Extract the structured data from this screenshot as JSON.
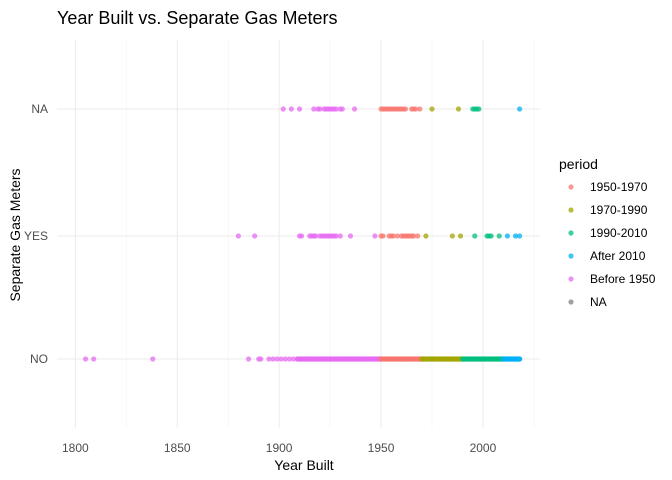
{
  "chart_data": {
    "type": "scatter",
    "title": "Year Built vs. Separate Gas Meters",
    "xlabel": "Year Built",
    "ylabel": "Separate Gas Meters",
    "xlim": [
      1791,
      2028
    ],
    "x_ticks": [
      "1800",
      "1850",
      "1900",
      "1950",
      "2000"
    ],
    "categories": [
      "NO",
      "YES",
      "NA"
    ],
    "grid": true,
    "legend_position": "right",
    "legend_title": "period",
    "series": [
      {
        "name": "1950-1970",
        "color": "#F8766D",
        "points": [
          {
            "y": "NA",
            "x": [
              1950,
              1951,
              1952,
              1953,
              1954,
              1955,
              1956,
              1957,
              1958,
              1959,
              1960,
              1961,
              1962,
              1965,
              1966,
              1967,
              1969
            ]
          },
          {
            "y": "YES",
            "x": [
              1950,
              1951,
              1954,
              1955,
              1956,
              1958,
              1960,
              1961,
              1962,
              1963,
              1964,
              1965,
              1966,
              1968
            ]
          },
          {
            "y": "NO",
            "x": [
              1950,
              1952,
              1954,
              1956,
              1958,
              1960,
              1962,
              1964,
              1966,
              1968,
              1970
            ]
          }
        ]
      },
      {
        "name": "1970-1990",
        "color": "#A3A500",
        "points": [
          {
            "y": "NA",
            "x": [
              1975,
              1988
            ]
          },
          {
            "y": "YES",
            "x": [
              1972,
              1985,
              1989
            ]
          },
          {
            "y": "NO",
            "x": [
              1971,
              1973,
              1975,
              1977,
              1979,
              1981,
              1983,
              1985,
              1987,
              1989
            ]
          }
        ]
      },
      {
        "name": "1990-2010",
        "color": "#00BF7D",
        "points": [
          {
            "y": "NA",
            "x": [
              1995,
              1996,
              1997,
              1998
            ]
          },
          {
            "y": "YES",
            "x": [
              1996,
              2002,
              2003,
              2004,
              2008
            ]
          },
          {
            "y": "NO",
            "x": [
              1991,
              1993,
              1995,
              1997,
              1999,
              2001,
              2003,
              2005,
              2007,
              2009
            ]
          }
        ]
      },
      {
        "name": "After 2010",
        "color": "#00B0F6",
        "points": [
          {
            "y": "NA",
            "x": [
              2018
            ]
          },
          {
            "y": "YES",
            "x": [
              2012,
              2016,
              2018
            ]
          },
          {
            "y": "NO",
            "x": [
              2010,
              2011,
              2012,
              2013,
              2014,
              2015,
              2016,
              2017,
              2018
            ]
          }
        ]
      },
      {
        "name": "Before 1950",
        "color": "#E76BF3",
        "points": [
          {
            "y": "NA",
            "x": [
              1902,
              1906,
              1910,
              1917,
              1919,
              1920,
              1922,
              1923,
              1924,
              1925,
              1926,
              1927,
              1928,
              1930,
              1931,
              1937
            ]
          },
          {
            "y": "YES",
            "x": [
              1880,
              1888,
              1910,
              1911,
              1915,
              1916,
              1917,
              1918,
              1920,
              1921,
              1922,
              1923,
              1924,
              1925,
              1926,
              1927,
              1928,
              1930,
              1935,
              1947
            ]
          },
          {
            "y": "NO",
            "x": [
              1805,
              1809,
              1838,
              1885,
              1890,
              1891,
              1895,
              1897,
              1899,
              1901,
              1903,
              1905,
              1907,
              1909,
              1911,
              1913,
              1915,
              1917,
              1919,
              1921,
              1923,
              1925,
              1927,
              1929,
              1931,
              1933,
              1935,
              1937,
              1939,
              1941,
              1943,
              1945,
              1947,
              1949
            ]
          }
        ]
      },
      {
        "name": "NA",
        "color": "#808080",
        "points": []
      }
    ]
  }
}
